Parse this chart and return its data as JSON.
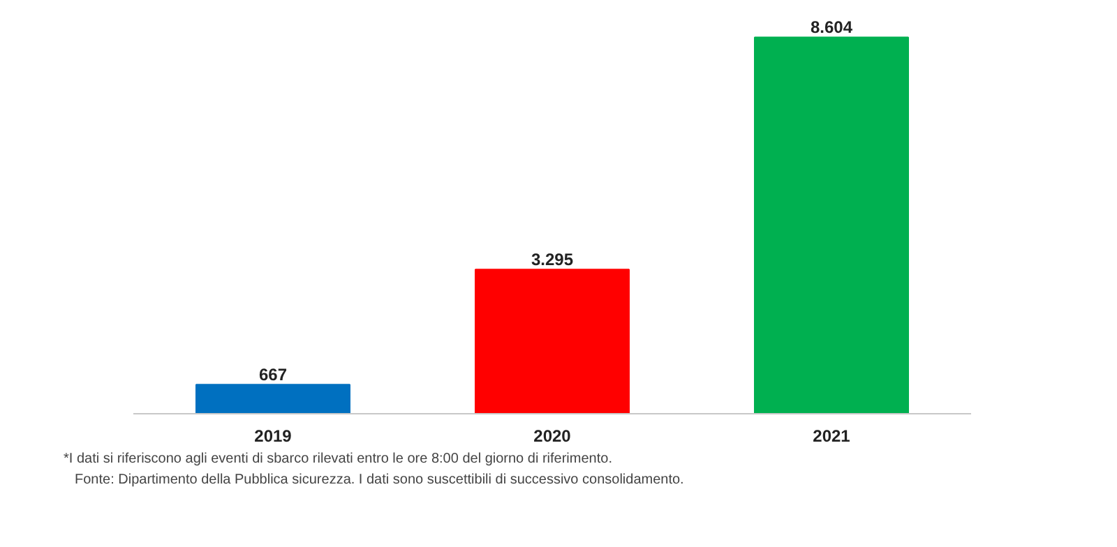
{
  "chart_data": {
    "type": "bar",
    "categories": [
      "2019",
      "2020",
      "2021"
    ],
    "values": [
      667,
      3295,
      8604
    ],
    "colors": [
      "#0070c0",
      "#ff0000",
      "#00b050"
    ],
    "value_labels": [
      "667",
      "3.295",
      "8.604"
    ],
    "grid": false,
    "annotations": [
      "*I dati si riferiscono agli eventi di sbarco rilevati entro le ore 8:00 del giorno di riferimento.",
      "Fonte: Dipartimento della Pubblica sicurezza. I dati sono suscettibili di successivo consolidamento."
    ]
  }
}
